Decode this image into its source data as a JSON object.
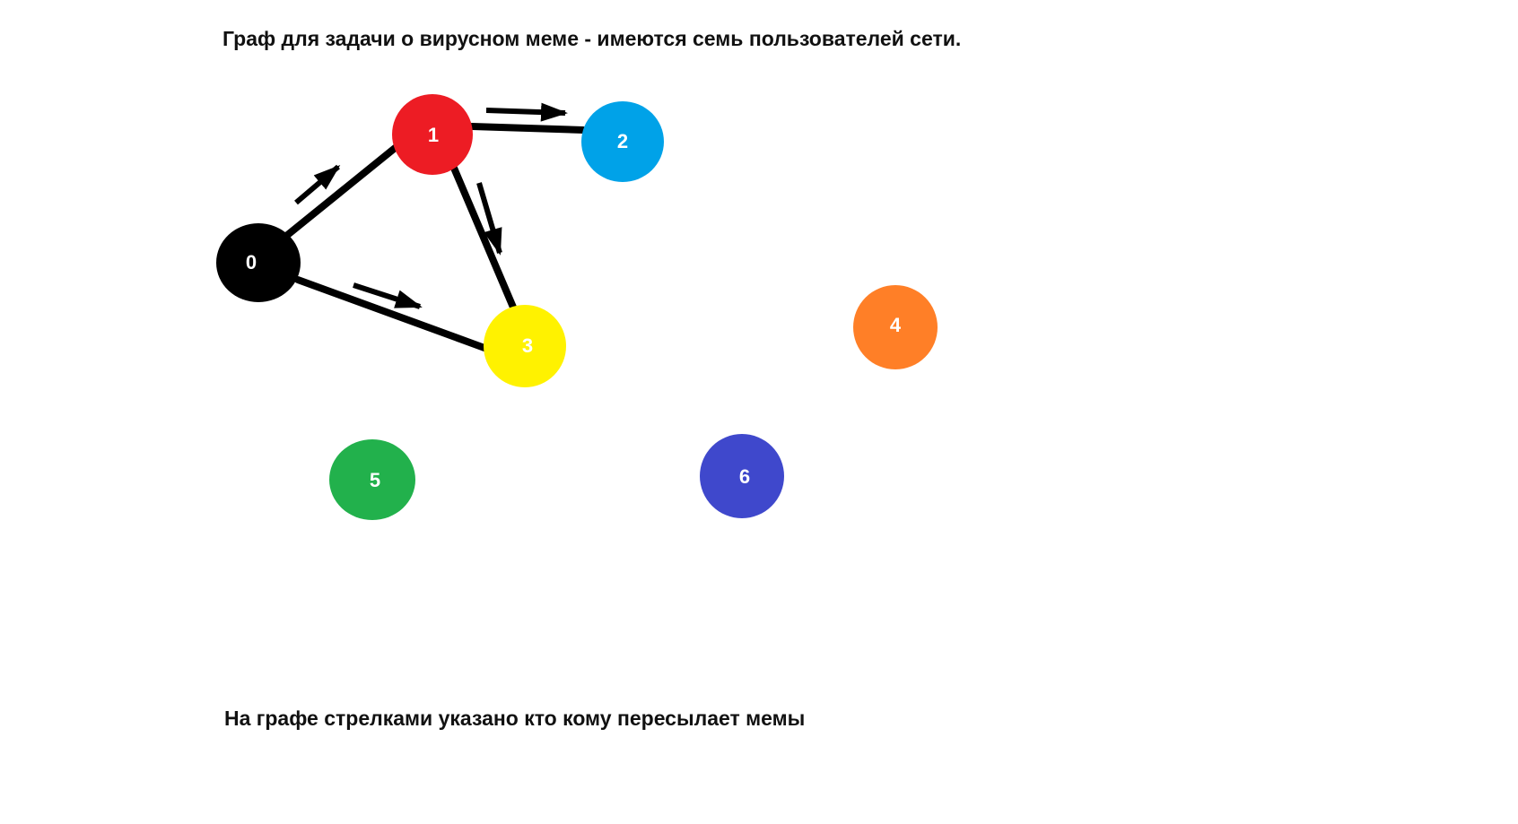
{
  "title": "Граф для задачи о вирусном меме - имеются семь пользователей сети.",
  "caption": "На графе стрелками указано кто кому пересылает мемы",
  "nodes": [
    {
      "id": "0",
      "label": "0",
      "color": "#000000"
    },
    {
      "id": "1",
      "label": "1",
      "color": "#ed1c24"
    },
    {
      "id": "2",
      "label": "2",
      "color": "#00a2e8"
    },
    {
      "id": "3",
      "label": "3",
      "color": "#fff200"
    },
    {
      "id": "4",
      "label": "4",
      "color": "#ff7f27"
    },
    {
      "id": "5",
      "label": "5",
      "color": "#22b14c"
    },
    {
      "id": "6",
      "label": "6",
      "color": "#3f48cc"
    }
  ],
  "edges": [
    {
      "from": "0",
      "to": "1"
    },
    {
      "from": "0",
      "to": "3"
    },
    {
      "from": "1",
      "to": "2"
    },
    {
      "from": "1",
      "to": "3"
    }
  ],
  "colors": {
    "edge": "#000000",
    "text": "#111111"
  }
}
